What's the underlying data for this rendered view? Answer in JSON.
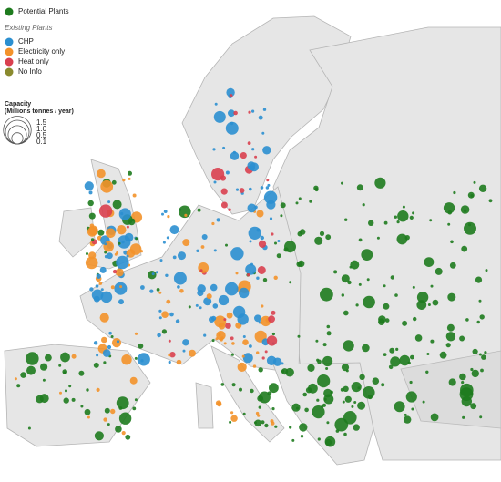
{
  "legend": {
    "potential": {
      "name": "Potential Plants",
      "color": "#1e7b1e"
    },
    "existing_title": "Existing Plants",
    "existing": [
      {
        "name": "CHP",
        "color": "#2b8fd0"
      },
      {
        "name": "Electricity only",
        "color": "#f3922a"
      },
      {
        "name": "Heat only",
        "color": "#d9404f"
      },
      {
        "name": "No Info",
        "color": "#8a8a2e"
      }
    ],
    "capacity_title": "Capacity",
    "capacity_unit": "(Millions tonnes / year)",
    "sizes": [
      1.5,
      {
        "value": 1,
        "label": "1.0"
      },
      0.5,
      0.1
    ]
  }
}
